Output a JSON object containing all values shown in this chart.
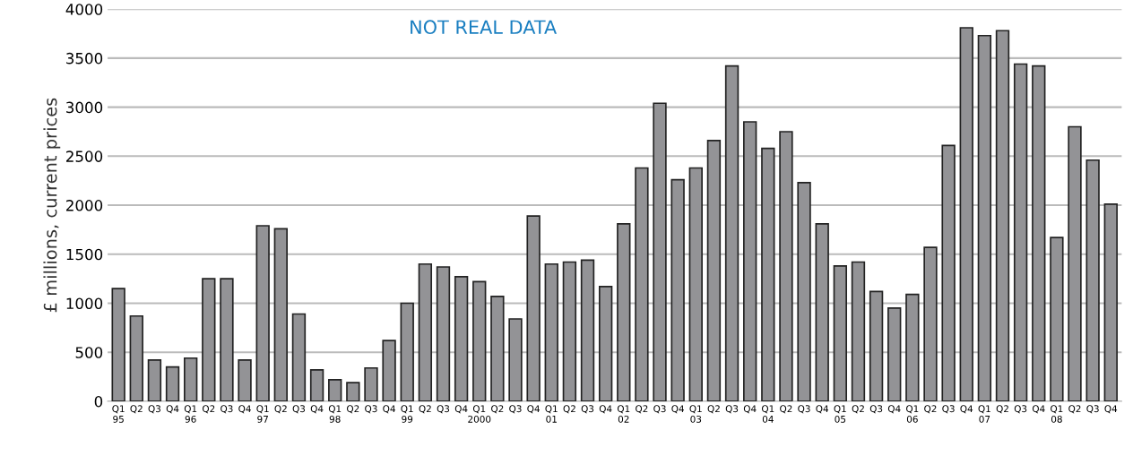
{
  "chart_data": {
    "type": "bar",
    "ylabel": "£ millions, current prices",
    "categories": [
      "Q1\n95",
      "Q2",
      "Q3",
      "Q4",
      "Q1\n96",
      "Q2",
      "Q3",
      "Q4",
      "Q1\n97",
      "Q2",
      "Q3",
      "Q4",
      "Q1\n98",
      "Q2",
      "Q3",
      "Q4",
      "Q1\n99",
      "Q2",
      "Q3",
      "Q4",
      "Q1\n2000",
      "Q2",
      "Q3",
      "Q4",
      "Q1\n01",
      "Q2",
      "Q3",
      "Q4",
      "Q1\n02",
      "Q2",
      "Q3",
      "Q4",
      "Q1\n03",
      "Q2",
      "Q3",
      "Q4",
      "Q1\n04",
      "Q2",
      "Q3",
      "Q4",
      "Q1\n05",
      "Q2",
      "Q3",
      "Q4",
      "Q1\n06",
      "Q2",
      "Q3",
      "Q4",
      "Q1\n07",
      "Q2",
      "Q3",
      "Q4",
      "Q1\n08",
      "Q2",
      "Q3",
      "Q4"
    ],
    "values": [
      1150,
      870,
      420,
      350,
      440,
      1250,
      1250,
      420,
      1790,
      1760,
      890,
      320,
      220,
      190,
      340,
      620,
      1000,
      1400,
      1370,
      1270,
      1220,
      1070,
      840,
      1890,
      1400,
      1420,
      1440,
      1170,
      1810,
      2380,
      3040,
      2260,
      2380,
      2660,
      3420,
      2850,
      2580,
      2750,
      2230,
      1810,
      1380,
      1420,
      1120,
      950,
      1090,
      1570,
      2610,
      3810,
      3730,
      3780,
      3440,
      3420,
      1670,
      2800,
      2460,
      2010
    ],
    "color": "#939396",
    "ylim": [
      0,
      4000
    ],
    "yticks": [
      0,
      500,
      1000,
      1500,
      2000,
      2500,
      3000,
      3500,
      4000
    ],
    "grid": "y",
    "annotations": [
      "NOT REAL DATA"
    ]
  }
}
